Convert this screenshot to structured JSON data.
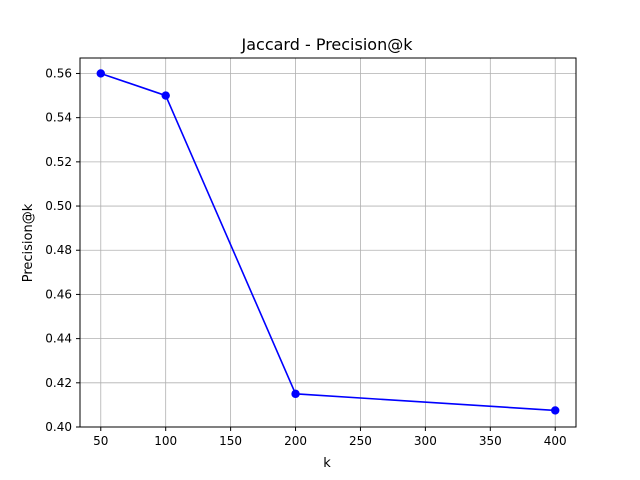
{
  "chart_data": {
    "type": "line",
    "title": "Jaccard - Precision@k",
    "xlabel": "k",
    "ylabel": "Precision@k",
    "x": [
      50,
      100,
      200,
      400
    ],
    "series": [
      {
        "values": [
          0.56,
          0.55,
          0.415,
          0.4075
        ],
        "color": "#0000ff",
        "marker": "circle"
      }
    ],
    "xlim": [
      34,
      416
    ],
    "ylim": [
      0.4,
      0.567
    ],
    "xticks": [
      50,
      100,
      150,
      200,
      250,
      300,
      350,
      400
    ],
    "xtick_labels": [
      "50",
      "100",
      "150",
      "200",
      "250",
      "300",
      "350",
      "400"
    ],
    "yticks": [
      0.4,
      0.42,
      0.44,
      0.46,
      0.48,
      0.5,
      0.52,
      0.54,
      0.56
    ],
    "ytick_labels": [
      "0.40",
      "0.42",
      "0.44",
      "0.46",
      "0.48",
      "0.50",
      "0.52",
      "0.54",
      "0.56"
    ],
    "grid": true,
    "grid_color": "#b0b0b0"
  }
}
